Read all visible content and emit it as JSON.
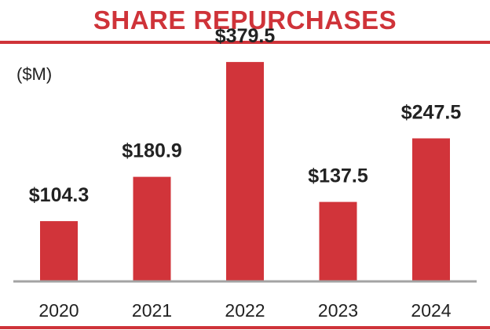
{
  "title": "SHARE REPURCHASES",
  "unit_label": "($M)",
  "colors": {
    "accent": "#cf3339",
    "bar": "#d1343a",
    "axis": "#a3a3a3",
    "text": "#222222"
  },
  "chart_data": {
    "type": "bar",
    "title": "SHARE REPURCHASES",
    "ylabel": "($M)",
    "xlabel": "",
    "categories": [
      "2020",
      "2021",
      "2022",
      "2023",
      "2024"
    ],
    "values": [
      104.3,
      180.9,
      379.5,
      137.5,
      247.5
    ],
    "value_labels": [
      "$104.3",
      "$180.9",
      "$379.5",
      "$137.5",
      "$247.5"
    ],
    "ylim": [
      0,
      400
    ],
    "grid": false,
    "legend": "none"
  }
}
